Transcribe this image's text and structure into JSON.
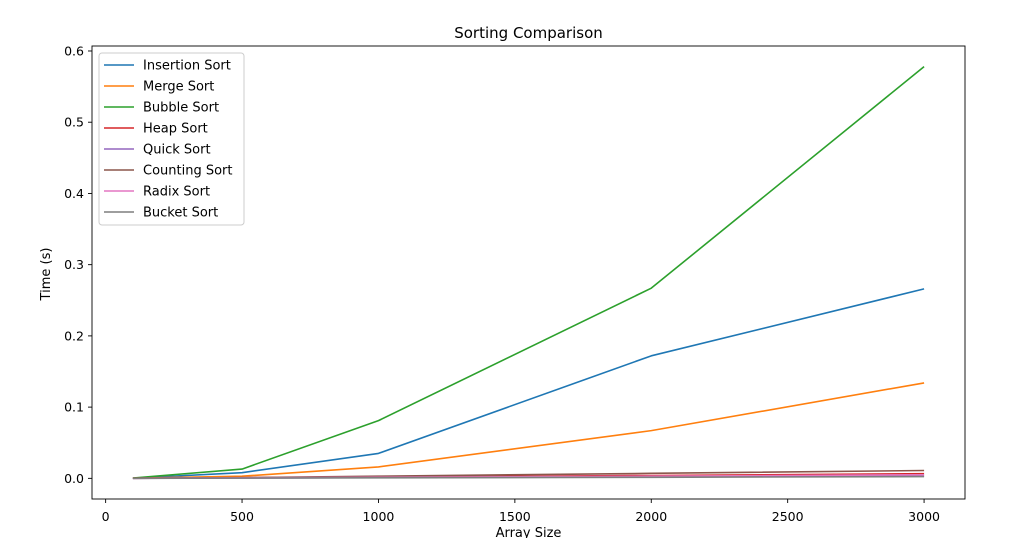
{
  "chart_data": {
    "type": "line",
    "title": "Sorting Comparison",
    "xlabel": "Array Size",
    "ylabel": "Time (s)",
    "x": [
      100,
      500,
      1000,
      2000,
      3000
    ],
    "xlim": [
      -50,
      3150
    ],
    "ylim": [
      -0.029,
      0.607
    ],
    "xticks": [
      0,
      500,
      1000,
      1500,
      2000,
      2500,
      3000
    ],
    "yticks": [
      0.0,
      0.1,
      0.2,
      0.3,
      0.4,
      0.5,
      0.6
    ],
    "xtick_labels": [
      "0",
      "500",
      "1000",
      "1500",
      "2000",
      "2500",
      "3000"
    ],
    "ytick_labels": [
      "0.0",
      "0.1",
      "0.2",
      "0.3",
      "0.4",
      "0.5",
      "0.6"
    ],
    "grid": false,
    "legend_position": "top-left",
    "series": [
      {
        "name": "Insertion Sort",
        "color": "#1f77b4",
        "values": [
          0.0003,
          0.008,
          0.035,
          0.172,
          0.266
        ]
      },
      {
        "name": "Merge Sort",
        "color": "#ff7f0e",
        "values": [
          0.0003,
          0.003,
          0.016,
          0.067,
          0.134
        ]
      },
      {
        "name": "Bubble Sort",
        "color": "#2ca02c",
        "values": [
          0.0005,
          0.013,
          0.081,
          0.267,
          0.578
        ]
      },
      {
        "name": "Heap Sort",
        "color": "#d62728",
        "values": [
          0.0002,
          0.001,
          0.002,
          0.004,
          0.0065
        ]
      },
      {
        "name": "Quick Sort",
        "color": "#9467bd",
        "values": [
          0.0001,
          0.0005,
          0.001,
          0.002,
          0.003
        ]
      },
      {
        "name": "Counting Sort",
        "color": "#8c564b",
        "values": [
          0.0001,
          0.001,
          0.003,
          0.007,
          0.011
        ]
      },
      {
        "name": "Radix Sort",
        "color": "#e377c2",
        "values": [
          0.0001,
          0.0007,
          0.0015,
          0.003,
          0.005
        ]
      },
      {
        "name": "Bucket Sort",
        "color": "#7f7f7f",
        "values": [
          0.0001,
          0.0004,
          0.0008,
          0.0015,
          0.0025
        ]
      }
    ]
  }
}
